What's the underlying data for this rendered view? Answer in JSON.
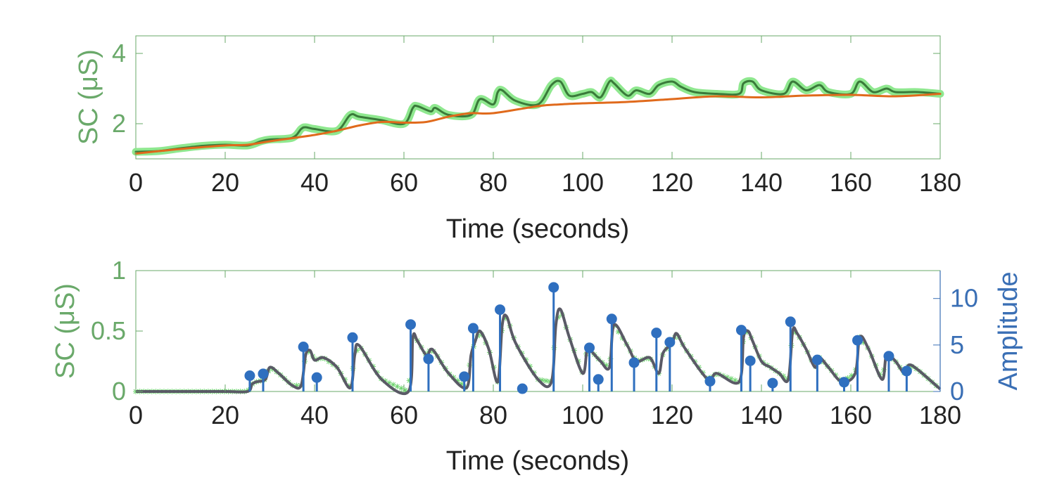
{
  "chart_data": [
    {
      "type": "line",
      "xlabel": "Time (seconds)",
      "ylabel": "SC (μS)",
      "xlim": [
        0,
        180
      ],
      "ylim": [
        1,
        4.5
      ],
      "xticks": [
        0,
        20,
        40,
        60,
        80,
        100,
        120,
        140,
        160,
        180
      ],
      "xtick_labels": [
        "0",
        "20",
        "40",
        "60",
        "80",
        "100",
        "120",
        "140",
        "160",
        "180"
      ],
      "yticks": [
        2,
        4
      ],
      "ytick_labels": [
        "2",
        "4"
      ],
      "grid": false,
      "colors": {
        "axis_left": "#6aa96a",
        "raw": "#8fe88f",
        "filtered": "#3a7a3a",
        "tonic": "#e06a1c"
      },
      "series": [
        {
          "role": "raw",
          "x": [
            0,
            5,
            10,
            15,
            20,
            25,
            28,
            30,
            35,
            37,
            38,
            40,
            45,
            48,
            50,
            55,
            60,
            62,
            63,
            66,
            67,
            70,
            75,
            77,
            80,
            81,
            82,
            85,
            90,
            93,
            95,
            97,
            100,
            102,
            104,
            106,
            107,
            110,
            112,
            115,
            117,
            120,
            122,
            125,
            130,
            135,
            136,
            138,
            140,
            145,
            147,
            150,
            153,
            155,
            160,
            162,
            165,
            168,
            170,
            175,
            180
          ],
          "y": [
            1.2,
            1.22,
            1.3,
            1.37,
            1.4,
            1.38,
            1.5,
            1.55,
            1.6,
            1.85,
            1.9,
            1.85,
            1.8,
            2.25,
            2.2,
            2.1,
            2.0,
            2.45,
            2.5,
            2.35,
            2.45,
            2.25,
            2.25,
            2.7,
            2.55,
            2.9,
            2.95,
            2.65,
            2.55,
            3.1,
            3.2,
            2.8,
            2.85,
            2.9,
            2.75,
            3.2,
            3.15,
            2.8,
            2.95,
            2.85,
            3.1,
            3.2,
            3.05,
            2.9,
            2.85,
            2.85,
            3.15,
            3.2,
            2.95,
            2.85,
            3.2,
            2.95,
            3.1,
            2.9,
            2.85,
            3.2,
            2.9,
            3.0,
            2.9,
            2.9,
            2.85
          ]
        },
        {
          "role": "filtered",
          "x": [
            0,
            5,
            10,
            15,
            20,
            25,
            28,
            30,
            35,
            37,
            38,
            40,
            45,
            48,
            50,
            55,
            60,
            62,
            63,
            66,
            67,
            70,
            75,
            77,
            80,
            81,
            82,
            85,
            90,
            93,
            95,
            97,
            100,
            102,
            104,
            106,
            107,
            110,
            112,
            115,
            117,
            120,
            122,
            125,
            130,
            135,
            136,
            138,
            140,
            145,
            147,
            150,
            153,
            155,
            160,
            162,
            165,
            168,
            170,
            175,
            180
          ],
          "y": [
            1.2,
            1.22,
            1.3,
            1.37,
            1.4,
            1.38,
            1.5,
            1.55,
            1.6,
            1.85,
            1.9,
            1.85,
            1.8,
            2.25,
            2.2,
            2.1,
            2.0,
            2.45,
            2.5,
            2.35,
            2.45,
            2.25,
            2.25,
            2.7,
            2.55,
            2.9,
            2.95,
            2.65,
            2.55,
            3.1,
            3.2,
            2.8,
            2.85,
            2.9,
            2.75,
            3.2,
            3.15,
            2.8,
            2.95,
            2.85,
            3.1,
            3.2,
            3.05,
            2.9,
            2.85,
            2.85,
            3.15,
            3.2,
            2.95,
            2.85,
            3.2,
            2.95,
            3.1,
            2.9,
            2.85,
            3.2,
            2.9,
            3.0,
            2.9,
            2.9,
            2.85
          ]
        },
        {
          "role": "tonic",
          "x": [
            0,
            10,
            20,
            25,
            30,
            40,
            45,
            50,
            55,
            60,
            65,
            70,
            75,
            80,
            90,
            95,
            100,
            110,
            120,
            130,
            140,
            150,
            160,
            170,
            180
          ],
          "y": [
            1.15,
            1.28,
            1.38,
            1.4,
            1.5,
            1.68,
            1.8,
            1.95,
            2.05,
            2.03,
            2.05,
            2.2,
            2.3,
            2.3,
            2.5,
            2.55,
            2.58,
            2.62,
            2.7,
            2.78,
            2.75,
            2.8,
            2.82,
            2.78,
            2.85
          ]
        }
      ]
    },
    {
      "type": "line",
      "xlabel": "Time (seconds)",
      "ylabel": "SC (μS)",
      "ylabel_right": "Amplitude",
      "xlim": [
        0,
        180
      ],
      "ylim": [
        0,
        1
      ],
      "ylim_right": [
        0,
        13
      ],
      "xticks": [
        0,
        20,
        40,
        60,
        80,
        100,
        120,
        140,
        160,
        180
      ],
      "xtick_labels": [
        "0",
        "20",
        "40",
        "60",
        "80",
        "100",
        "120",
        "140",
        "160",
        "180"
      ],
      "yticks": [
        0,
        0.5,
        1
      ],
      "ytick_labels": [
        "0",
        "0.5",
        "1"
      ],
      "yticks_right": [
        0,
        5,
        10
      ],
      "ytick_labels_right": [
        "0",
        "5",
        "10"
      ],
      "grid": false,
      "colors": {
        "axis_left": "#6aa96a",
        "axis_right": "#3a6fb5",
        "markers": "#6fd46f",
        "phasic": "#5a5a66",
        "stems": "#2f6fbf"
      },
      "series": [
        {
          "role": "phasic",
          "x": [
            0,
            10,
            20,
            25,
            26,
            27,
            29,
            30,
            32,
            35,
            37,
            38,
            39,
            40,
            42,
            45,
            48,
            49,
            50,
            55,
            61,
            62,
            63,
            65,
            66,
            67,
            70,
            74,
            75,
            76,
            77,
            79,
            81,
            82,
            83,
            85,
            90,
            93,
            94,
            95,
            97,
            100,
            101,
            102,
            104,
            106,
            107,
            110,
            112,
            115,
            117,
            118,
            120,
            121,
            123,
            128,
            130,
            135,
            136,
            137,
            138,
            140,
            142,
            144,
            146,
            147,
            148,
            150,
            152,
            153,
            155,
            158,
            161,
            162,
            164,
            167,
            168,
            170,
            172,
            173,
            175,
            180
          ],
          "y": [
            0.0,
            0.0,
            0.0,
            0.0,
            0.06,
            0.08,
            0.1,
            0.2,
            0.15,
            0.05,
            0.05,
            0.3,
            0.34,
            0.26,
            0.28,
            0.2,
            0.03,
            0.3,
            0.38,
            0.1,
            0.0,
            0.45,
            0.42,
            0.3,
            0.35,
            0.32,
            0.15,
            0.03,
            0.3,
            0.42,
            0.5,
            0.35,
            0.08,
            0.55,
            0.62,
            0.4,
            0.1,
            0.08,
            0.55,
            0.68,
            0.45,
            0.15,
            0.35,
            0.33,
            0.25,
            0.2,
            0.55,
            0.38,
            0.25,
            0.28,
            0.15,
            0.32,
            0.4,
            0.48,
            0.35,
            0.1,
            0.15,
            0.08,
            0.45,
            0.5,
            0.42,
            0.25,
            0.2,
            0.15,
            0.1,
            0.5,
            0.48,
            0.35,
            0.2,
            0.28,
            0.2,
            0.08,
            0.15,
            0.45,
            0.35,
            0.1,
            0.3,
            0.25,
            0.15,
            0.22,
            0.18,
            0.02
          ]
        },
        {
          "role": "stems_amplitude",
          "x": [
            25.5,
            28.5,
            37.5,
            40.5,
            48.5,
            61.5,
            65.5,
            73.5,
            75.5,
            81.5,
            86.5,
            93.5,
            101.5,
            103.5,
            106.5,
            111.5,
            116.5,
            119.5,
            128.5,
            135.5,
            137.5,
            142.5,
            146.5,
            152.5,
            158.5,
            161.5,
            168.5,
            172.5
          ],
          "y": [
            1.7,
            1.9,
            4.8,
            1.5,
            5.8,
            7.2,
            3.5,
            1.6,
            6.8,
            8.8,
            0.3,
            11.2,
            4.7,
            1.3,
            7.8,
            3.1,
            6.3,
            5.3,
            1.1,
            6.6,
            3.3,
            0.9,
            7.5,
            3.4,
            1.0,
            5.5,
            3.8,
            2.2
          ]
        }
      ]
    }
  ]
}
